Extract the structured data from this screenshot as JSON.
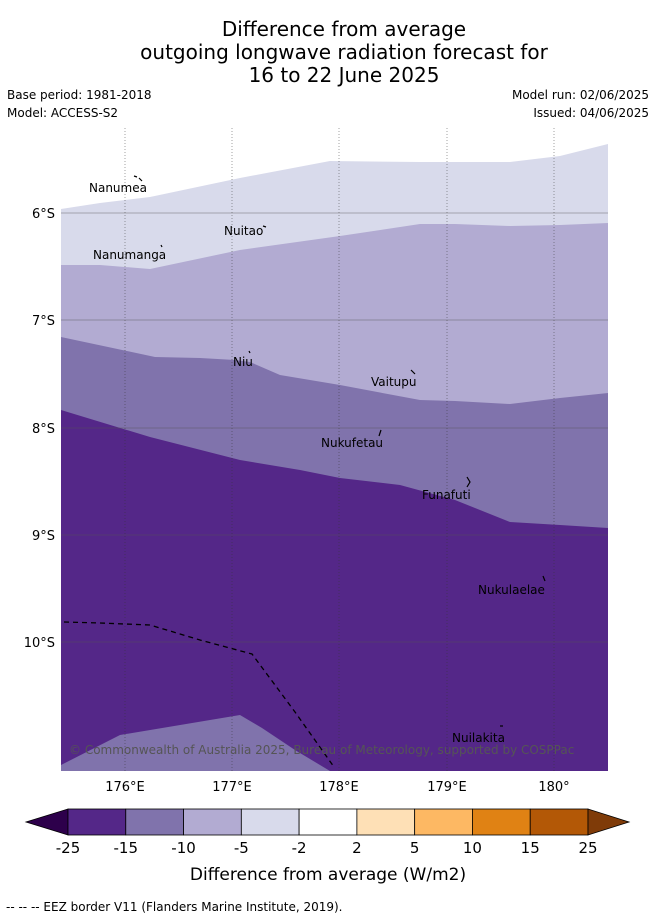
{
  "title": {
    "line1": "Difference from average",
    "line2": "outgoing longwave radiation forecast for",
    "line3": "16 to 22 June 2025"
  },
  "meta": {
    "base_period": "Base period: 1981-2018",
    "model": "Model: ACCESS-S2",
    "model_run": "Model run: 02/06/2025",
    "issued": "Issued: 04/06/2025"
  },
  "map": {
    "lon_labels": [
      "176°E",
      "177°E",
      "178°E",
      "179°E",
      "180°"
    ],
    "lat_labels": [
      "6°S",
      "7°S",
      "8°S",
      "9°S",
      "10°S"
    ],
    "places": [
      "Nanumea",
      "Nuitao",
      "Nanumanga",
      "Niu",
      "Vaitupu",
      "Nukufetau",
      "Funafuti",
      "Nukulaelae",
      "Nuilakita"
    ],
    "credit": "© Commonwealth of Australia 2025, Bureau of Meteorology, supported by COSPPac"
  },
  "colorbar": {
    "ticks": [
      "-25",
      "-15",
      "-10",
      "-5",
      "-2",
      "2",
      "5",
      "10",
      "15",
      "25"
    ],
    "title": "Difference from average (W/m2)",
    "colors": [
      "#2d004b",
      "#542788",
      "#8073ac",
      "#b2abd2",
      "#d8daeb",
      "#ffffff",
      "#fee0b6",
      "#fdb863",
      "#e08214",
      "#b35806",
      "#7f3b08"
    ]
  },
  "footer": "--  --  -- EEZ border V11 (Flanders Marine Institute, 2019)."
}
